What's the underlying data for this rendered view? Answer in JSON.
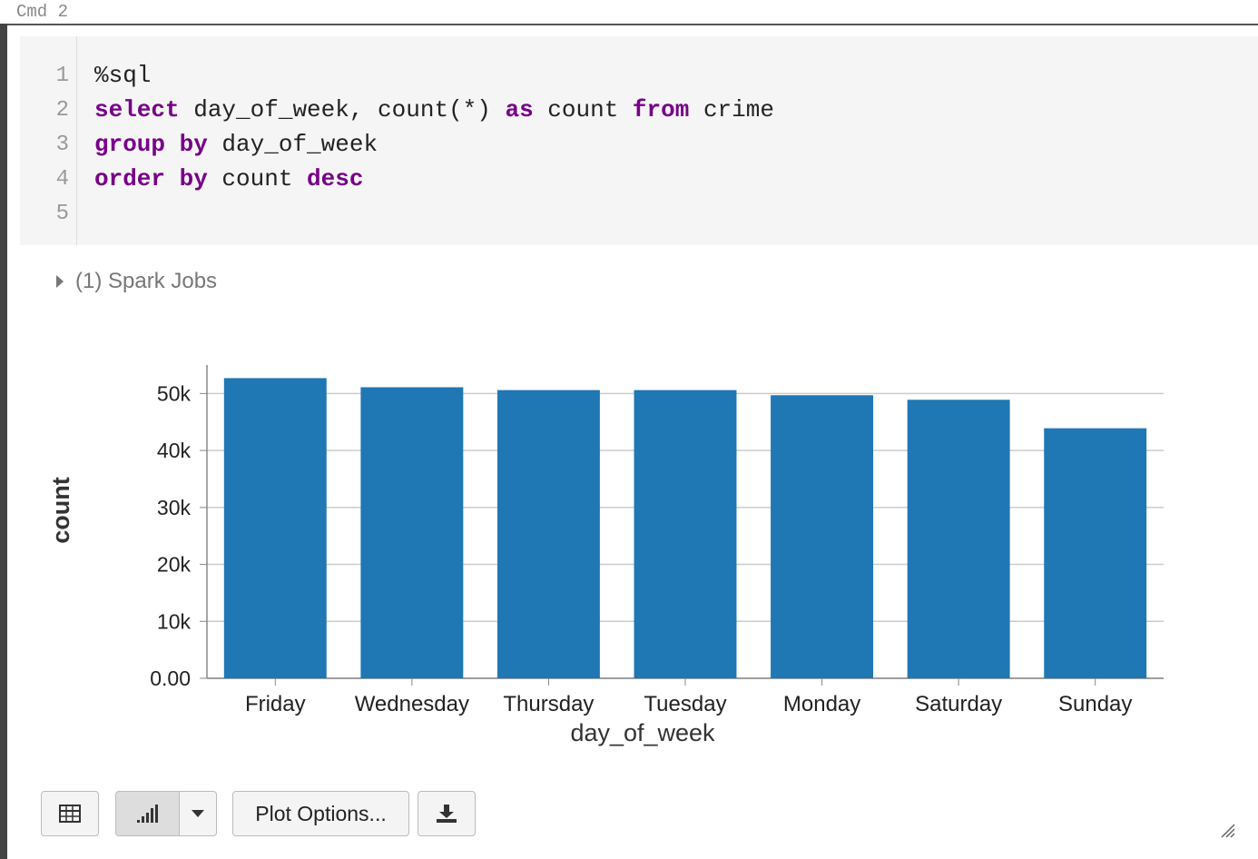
{
  "cell_label": "Cmd 2",
  "code": {
    "line_numbers": [
      1,
      2,
      3,
      4,
      5
    ],
    "lines": [
      [
        {
          "text": "%sql"
        }
      ],
      [
        {
          "text": "select",
          "keyword": true
        },
        {
          "text": " day_of_week, count(*) "
        },
        {
          "text": "as",
          "keyword": true
        },
        {
          "text": " count "
        },
        {
          "text": "from",
          "keyword": true
        },
        {
          "text": " crime"
        }
      ],
      [
        {
          "text": "group by",
          "keyword": true
        },
        {
          "text": " day_of_week"
        }
      ],
      [
        {
          "text": "order by",
          "keyword": true
        },
        {
          "text": " count "
        },
        {
          "text": "desc",
          "keyword": true
        }
      ],
      []
    ]
  },
  "spark_jobs": "(1) Spark Jobs",
  "chart_data": {
    "type": "bar",
    "xlabel": "day_of_week",
    "ylabel": "count",
    "categories": [
      "Friday",
      "Wednesday",
      "Thursday",
      "Tuesday",
      "Monday",
      "Saturday",
      "Sunday"
    ],
    "values": [
      52700,
      51100,
      50600,
      50600,
      49700,
      48900,
      43900
    ],
    "color": "#1f77b4",
    "ylim": [
      0,
      55000
    ],
    "yticks": [
      {
        "value": 0,
        "label": "0.00"
      },
      {
        "value": 10000,
        "label": "10k"
      },
      {
        "value": 20000,
        "label": "20k"
      },
      {
        "value": 30000,
        "label": "30k"
      },
      {
        "value": 40000,
        "label": "40k"
      },
      {
        "value": 50000,
        "label": "50k"
      }
    ],
    "grid": true
  },
  "toolbar": {
    "plot_options": "Plot Options..."
  }
}
